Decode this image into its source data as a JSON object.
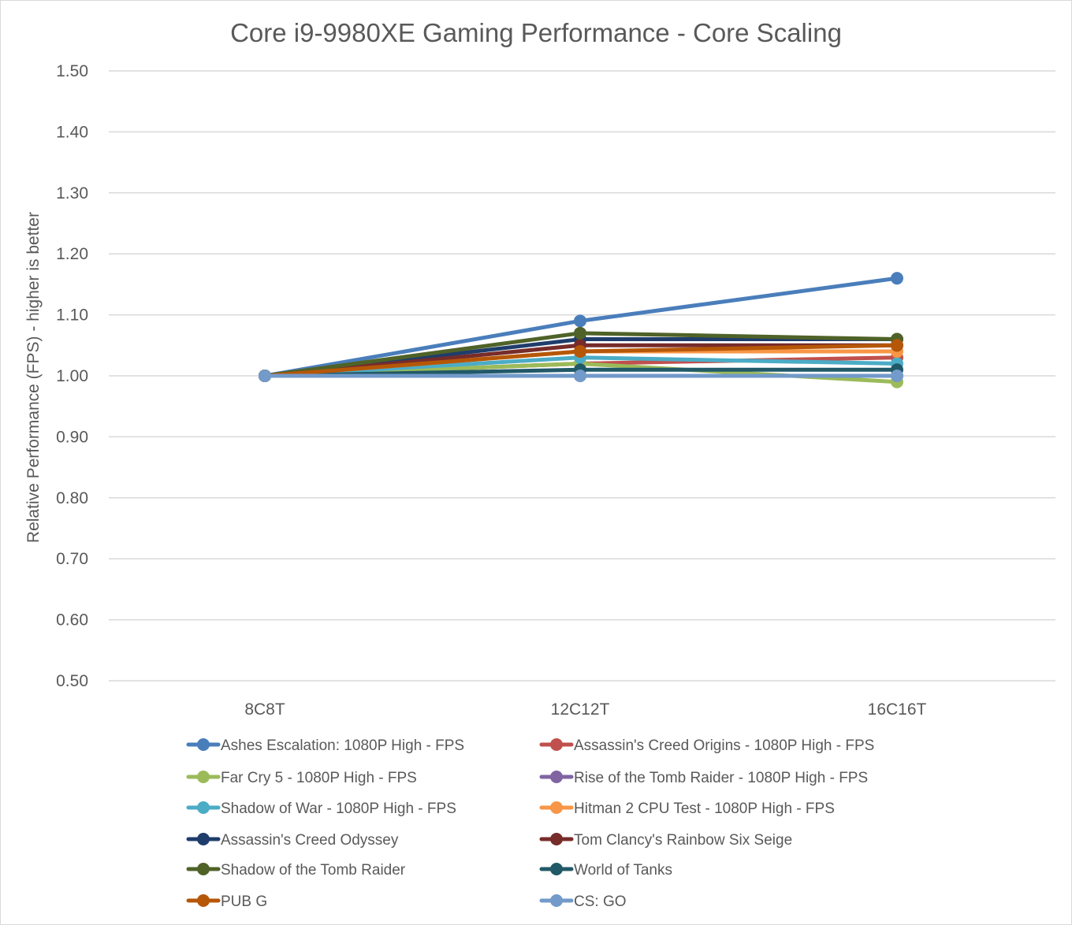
{
  "chart_data": {
    "type": "line",
    "title": "Core i9-9980XE Gaming Performance - Core Scaling",
    "ylabel": "Relative Performance (FPS) - higher is better",
    "xlabel": "",
    "categories": [
      "8C8T",
      "12C12T",
      "16C16T"
    ],
    "ylim": [
      0.5,
      1.5
    ],
    "yticks": [
      1.5,
      1.4,
      1.3,
      1.2,
      1.1,
      1.0,
      0.9,
      0.8,
      0.7,
      0.6,
      0.5
    ],
    "ytick_labels": [
      "1.50",
      "1.40",
      "1.30",
      "1.20",
      "1.10",
      "1.00",
      "0.90",
      "0.80",
      "0.70",
      "0.60",
      "0.50"
    ],
    "grid": true,
    "legend_position": "bottom",
    "series": [
      {
        "name": "Ashes Escalation: 1080P High - FPS",
        "color": "#4a7ebb",
        "values": [
          1.0,
          1.09,
          1.16
        ]
      },
      {
        "name": "Assassin's Creed Origins - 1080P High - FPS",
        "color": "#c0504d",
        "values": [
          1.0,
          1.02,
          1.03
        ]
      },
      {
        "name": "Far Cry 5 - 1080P High - FPS",
        "color": "#9bbb59",
        "values": [
          1.0,
          1.02,
          0.99
        ]
      },
      {
        "name": "Rise of the Tomb Raider - 1080P High - FPS",
        "color": "#8064a2",
        "values": [
          1.0,
          1.0,
          1.0
        ]
      },
      {
        "name": "Shadow of War - 1080P High - FPS",
        "color": "#4bacc6",
        "values": [
          1.0,
          1.03,
          1.02
        ]
      },
      {
        "name": "Hitman 2  CPU Test - 1080P High - FPS",
        "color": "#f79646",
        "values": [
          1.0,
          1.04,
          1.04
        ]
      },
      {
        "name": "Assassin's Creed Odyssey",
        "color": "#1f3d6b",
        "values": [
          1.0,
          1.06,
          1.06
        ]
      },
      {
        "name": "Tom Clancy's Rainbow Six Seige",
        "color": "#772c2a",
        "values": [
          1.0,
          1.05,
          1.05
        ]
      },
      {
        "name": "Shadow of the Tomb Raider",
        "color": "#4f6228",
        "values": [
          1.0,
          1.07,
          1.06
        ]
      },
      {
        "name": "World of Tanks",
        "color": "#215968",
        "values": [
          1.0,
          1.01,
          1.01
        ]
      },
      {
        "name": "PUB G",
        "color": "#b65708",
        "values": [
          1.0,
          1.04,
          1.05
        ]
      },
      {
        "name": "CS: GO",
        "color": "#729aca",
        "values": [
          1.0,
          1.0,
          1.0
        ]
      }
    ]
  }
}
